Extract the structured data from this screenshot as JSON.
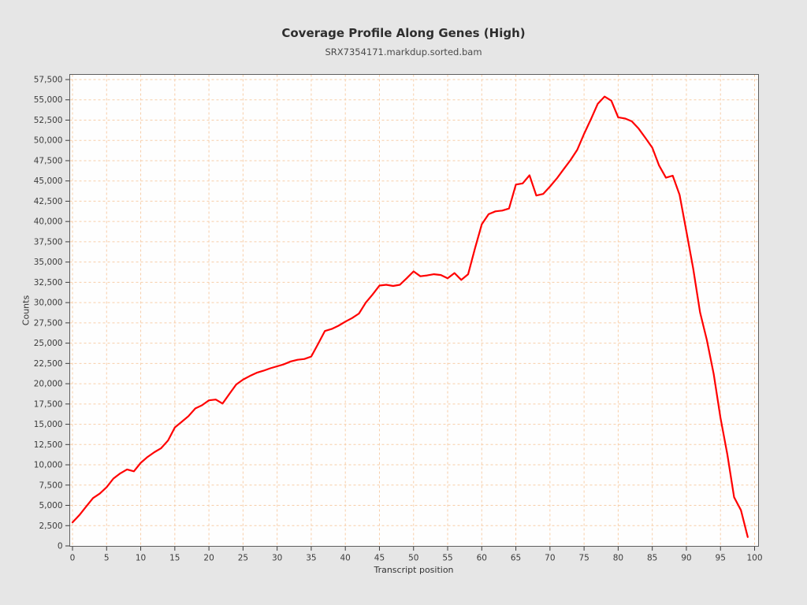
{
  "header": {
    "title": "Coverage Profile Along Genes (High)",
    "subtitle": "SRX7354171.markdup.sorted.bam"
  },
  "chart_data": {
    "type": "line",
    "title": "Coverage Profile Along Genes (High)",
    "subtitle": "SRX7354171.markdup.sorted.bam",
    "xlabel": "Transcript position",
    "ylabel": "Counts",
    "xlim": [
      0,
      100
    ],
    "ylim": [
      0,
      58200
    ],
    "grid": true,
    "legend_position": "none",
    "x_ticks": [
      0,
      5,
      10,
      15,
      20,
      25,
      30,
      35,
      40,
      45,
      50,
      55,
      60,
      65,
      70,
      75,
      80,
      85,
      90,
      95,
      100
    ],
    "y_ticks": [
      0,
      2500,
      5000,
      7500,
      10000,
      12500,
      15000,
      17500,
      20000,
      22500,
      25000,
      27500,
      30000,
      32500,
      35000,
      37500,
      40000,
      42500,
      45000,
      47500,
      50000,
      52500,
      55000,
      57500
    ],
    "x": [
      0,
      1,
      2,
      3,
      4,
      5,
      6,
      7,
      8,
      9,
      10,
      11,
      12,
      13,
      14,
      15,
      16,
      17,
      18,
      19,
      20,
      21,
      22,
      23,
      24,
      25,
      26,
      27,
      28,
      29,
      30,
      31,
      32,
      33,
      34,
      35,
      36,
      37,
      38,
      39,
      40,
      41,
      42,
      43,
      44,
      45,
      46,
      47,
      48,
      49,
      50,
      51,
      52,
      53,
      54,
      55,
      56,
      57,
      58,
      59,
      60,
      61,
      62,
      63,
      64,
      65,
      66,
      67,
      68,
      69,
      70,
      71,
      72,
      73,
      74,
      75,
      76,
      77,
      78,
      79,
      80,
      81,
      82,
      83,
      84,
      85,
      86,
      87,
      88,
      89,
      90,
      91,
      92,
      93,
      94,
      95,
      96,
      97,
      98,
      99
    ],
    "values": [
      2900,
      3800,
      4850,
      5900,
      6450,
      7250,
      8300,
      8950,
      9430,
      9200,
      10250,
      10970,
      11560,
      12050,
      13000,
      14600,
      15300,
      16000,
      16950,
      17350,
      17950,
      18050,
      17550,
      18750,
      19900,
      20500,
      20950,
      21350,
      21600,
      21900,
      22150,
      22400,
      22750,
      22950,
      23050,
      23350,
      24900,
      26500,
      26750,
      27150,
      27650,
      28100,
      28650,
      30000,
      31000,
      32100,
      32200,
      32050,
      32200,
      33000,
      33850,
      33250,
      33350,
      33500,
      33400,
      33000,
      33650,
      32800,
      33500,
      36650,
      39650,
      40900,
      41250,
      41350,
      41600,
      44550,
      44700,
      45700,
      43200,
      43400,
      44300,
      45300,
      46450,
      47550,
      48850,
      50800,
      52600,
      54500,
      55400,
      54900,
      52850,
      52700,
      52350,
      51450,
      50300,
      49100,
      46900,
      45400,
      45650,
      43300,
      38800,
      34200,
      28800,
      25400,
      21200,
      15800,
      11300,
      6000,
      4400,
      1100
    ],
    "line_color": "#ff0000",
    "grid_color": "#f7cda8",
    "plot_border_color": "#5f5f5f",
    "tick_color": "#3c3c3c",
    "background": "#e6e6e6",
    "plot_background": "#fefefe"
  }
}
